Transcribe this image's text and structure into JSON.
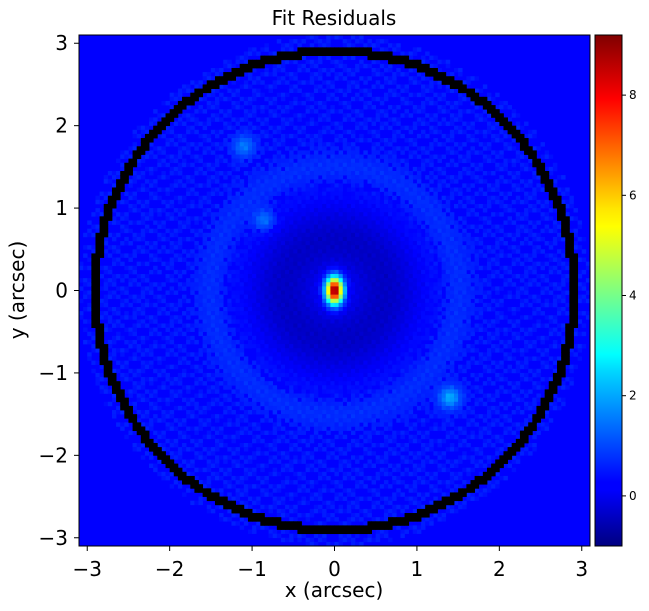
{
  "chart_data": {
    "type": "heatmap",
    "title": "Fit Residuals",
    "xlabel": "x (arcsec)",
    "ylabel": "y (arcsec)",
    "xlim": [
      -3.1,
      3.1
    ],
    "ylim": [
      -3.1,
      3.1
    ],
    "x_ticks": [
      -3,
      -2,
      -1,
      0,
      1,
      2,
      3
    ],
    "x_tick_labels": [
      "−3",
      "−2",
      "−1",
      "0",
      "1",
      "2",
      "3"
    ],
    "y_ticks": [
      3,
      2,
      1,
      0,
      -1,
      -2,
      -3
    ],
    "y_tick_labels": [
      "3",
      "2",
      "1",
      "0",
      "−1",
      "−2",
      "−3"
    ],
    "colormap": "jet",
    "colorbar": {
      "vmin": -1.0,
      "vmax": 9.2,
      "ticks": [
        0,
        2,
        4,
        6,
        8
      ],
      "tick_labels": [
        "0",
        "2",
        "4",
        "6",
        "8"
      ]
    },
    "background_value": 0.5,
    "mask_radius_arcsec": 2.95,
    "mask_color": "#000000",
    "features": [
      {
        "name": "central peak",
        "x": 0.0,
        "y": 0.0,
        "peak_value": 9.0,
        "sigma_x": 0.07,
        "sigma_y": 0.11
      },
      {
        "name": "residual ring",
        "radius": 1.5,
        "value": 1.0
      },
      {
        "name": "inner depression",
        "radius": 0.6,
        "value": -0.3
      },
      {
        "name": "knot",
        "x": -1.1,
        "y": 1.75,
        "value": 1.5
      },
      {
        "name": "knot",
        "x": -0.85,
        "y": 0.85,
        "value": 1.5
      },
      {
        "name": "arc",
        "x": 1.4,
        "y": -1.3,
        "value": 2.0
      }
    ]
  }
}
